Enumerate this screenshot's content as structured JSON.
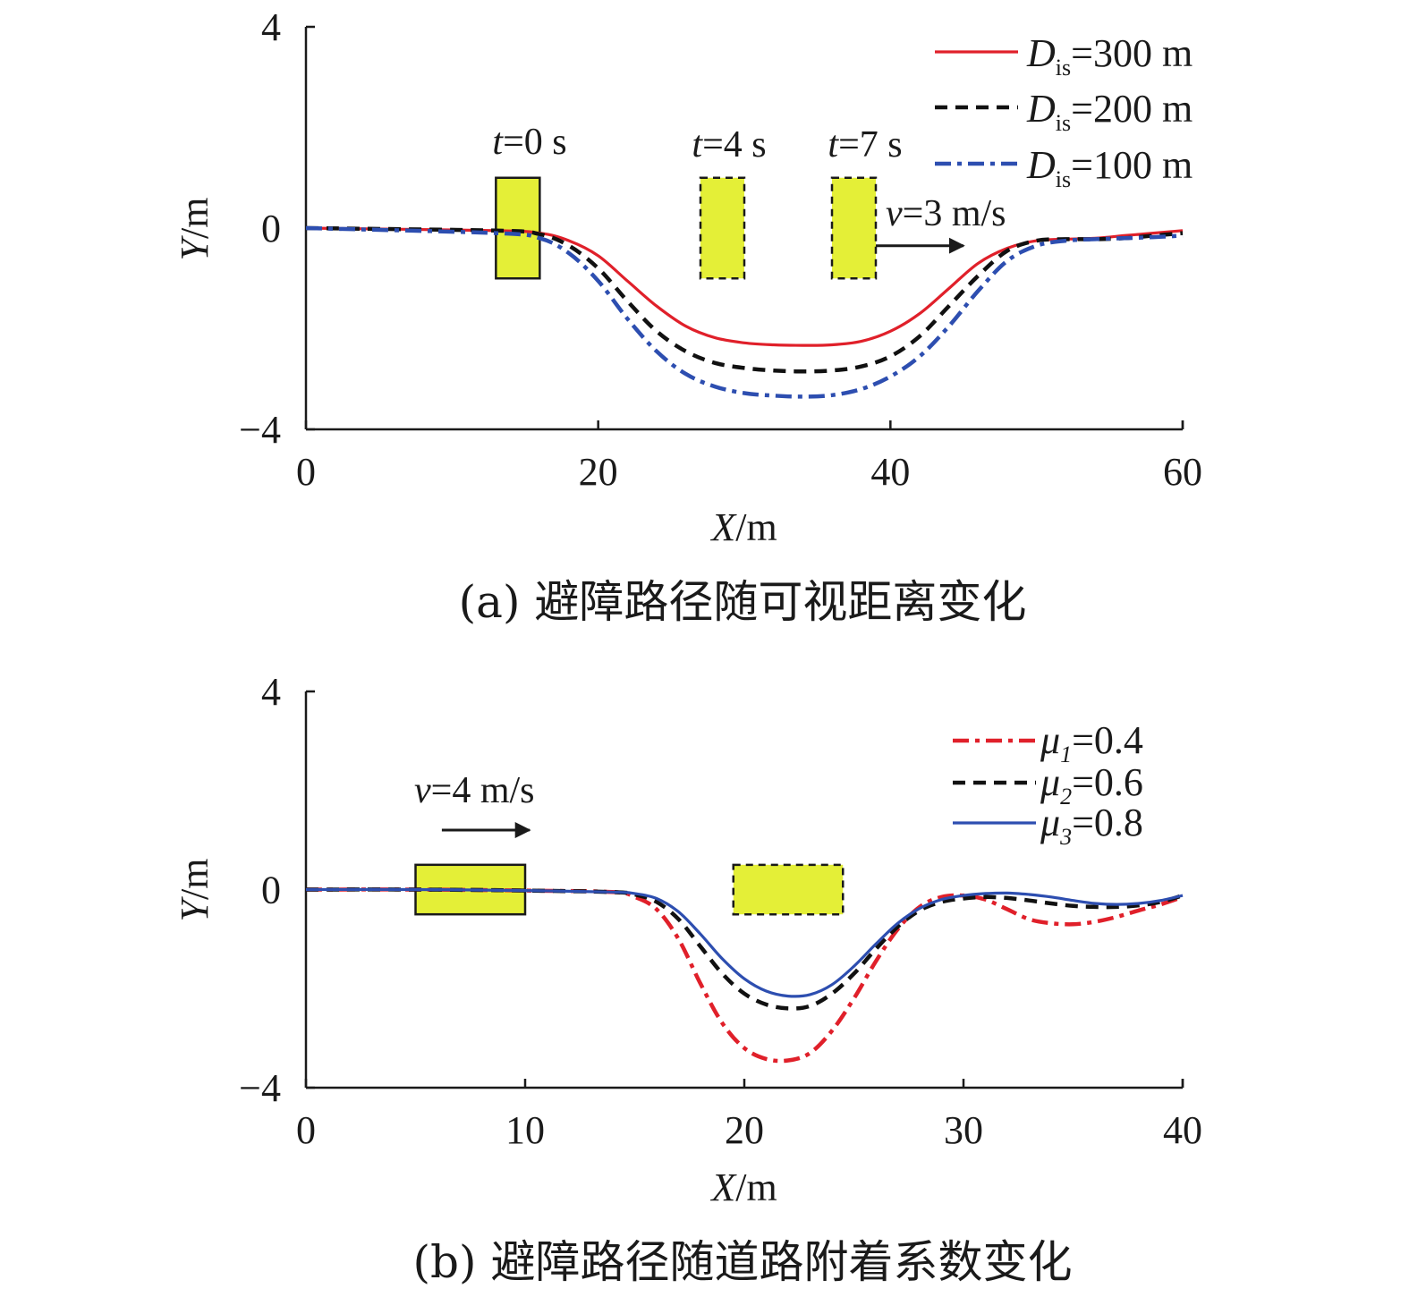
{
  "chart_data": [
    {
      "type": "line",
      "caption": "(a) 避障路径随可视距离变化",
      "xlabel": "X/m",
      "ylabel": "Y/m",
      "xlim": [
        0,
        60
      ],
      "ylim": [
        -4,
        4
      ],
      "xticks": [
        "0",
        "20",
        "40",
        "60"
      ],
      "yticks": [
        "4",
        "0",
        "−4"
      ],
      "series": [
        {
          "name": "D_is=300 m",
          "label_main": "D",
          "label_sub": "is",
          "label_rest": "=300 m",
          "color": "#e0202a",
          "style": "solid",
          "x": [
            0,
            13,
            16,
            18,
            20,
            22,
            24,
            26,
            28,
            30,
            32,
            34,
            36,
            38,
            40,
            42,
            44,
            46,
            48,
            50,
            52,
            54,
            56,
            58,
            60
          ],
          "y": [
            0,
            -0.05,
            -0.1,
            -0.25,
            -0.55,
            -1.05,
            -1.55,
            -1.95,
            -2.18,
            -2.28,
            -2.32,
            -2.33,
            -2.32,
            -2.25,
            -2.05,
            -1.7,
            -1.2,
            -0.7,
            -0.4,
            -0.25,
            -0.22,
            -0.2,
            -0.15,
            -0.1,
            -0.05
          ]
        },
        {
          "name": "D_is=200 m",
          "label_main": "D",
          "label_sub": "is",
          "label_rest": "=200 m",
          "color": "#111111",
          "style": "dash",
          "x": [
            0,
            13,
            16,
            18,
            20,
            22,
            24,
            26,
            28,
            30,
            32,
            34,
            36,
            38,
            40,
            42,
            44,
            46,
            48,
            50,
            52,
            54,
            56,
            58,
            60
          ],
          "y": [
            0,
            -0.05,
            -0.12,
            -0.35,
            -0.8,
            -1.45,
            -2.05,
            -2.45,
            -2.68,
            -2.78,
            -2.83,
            -2.85,
            -2.83,
            -2.75,
            -2.55,
            -2.15,
            -1.55,
            -0.95,
            -0.45,
            -0.25,
            -0.22,
            -0.22,
            -0.2,
            -0.15,
            -0.1
          ]
        },
        {
          "name": "D_is=100 m",
          "label_main": "D",
          "label_sub": "is",
          "label_rest": "=100 m",
          "color": "#2d4eb0",
          "style": "dashdot",
          "x": [
            0,
            13,
            16,
            18,
            20,
            22,
            24,
            26,
            28,
            30,
            32,
            34,
            36,
            38,
            40,
            42,
            44,
            46,
            48,
            50,
            52,
            54,
            56,
            58,
            60
          ],
          "y": [
            0,
            -0.1,
            -0.2,
            -0.5,
            -1.05,
            -1.8,
            -2.45,
            -2.9,
            -3.15,
            -3.28,
            -3.33,
            -3.35,
            -3.32,
            -3.2,
            -2.95,
            -2.55,
            -1.95,
            -1.25,
            -0.65,
            -0.35,
            -0.25,
            -0.22,
            -0.2,
            -0.18,
            -0.15
          ]
        }
      ],
      "obstacles": [
        {
          "x0": 13.0,
          "x1": 16.0,
          "y0": -1,
          "y1": 1,
          "style": "solid",
          "label_var": "t",
          "label_rest": "=0 s"
        },
        {
          "x0": 27.0,
          "x1": 30.0,
          "y0": -1,
          "y1": 1,
          "style": "dashed",
          "label_var": "t",
          "label_rest": "=4 s"
        },
        {
          "x0": 36.0,
          "x1": 39.0,
          "y0": -1,
          "y1": 1,
          "style": "dashed",
          "label_var": "t",
          "label_rest": "=7 s"
        }
      ],
      "arrow": {
        "x0": 39,
        "x1": 45,
        "y": -0.35,
        "label_var": "v",
        "label_rest": "=3 m/s"
      },
      "obstacle_fill": "#e4ef37"
    },
    {
      "type": "line",
      "caption": "(b) 避障路径随道路附着系数变化",
      "xlabel": "X/m",
      "ylabel": "Y/m",
      "xlim": [
        0,
        40
      ],
      "ylim": [
        -4,
        4
      ],
      "xticks": [
        "0",
        "10",
        "20",
        "30",
        "40"
      ],
      "yticks": [
        "4",
        "0",
        "−4"
      ],
      "series": [
        {
          "name": "μ1=0.4",
          "label_main": "μ",
          "label_sub": "1",
          "label_rest": "=0.4",
          "color": "#e0202a",
          "style": "dashdot",
          "x": [
            0,
            5,
            10,
            14,
            15,
            16,
            17,
            18,
            19,
            20,
            21,
            22,
            23,
            24,
            25,
            26,
            27,
            28,
            29,
            30,
            31,
            32,
            33,
            34,
            35,
            36,
            37,
            38,
            39,
            40
          ],
          "y": [
            0,
            0,
            -0.02,
            -0.05,
            -0.15,
            -0.4,
            -1.0,
            -1.9,
            -2.7,
            -3.2,
            -3.42,
            -3.45,
            -3.3,
            -2.85,
            -2.2,
            -1.45,
            -0.8,
            -0.35,
            -0.15,
            -0.12,
            -0.2,
            -0.4,
            -0.6,
            -0.68,
            -0.7,
            -0.65,
            -0.55,
            -0.42,
            -0.3,
            -0.15
          ]
        },
        {
          "name": "μ2=0.6",
          "label_main": "μ",
          "label_sub": "2",
          "label_rest": "=0.6",
          "color": "#111111",
          "style": "dash",
          "x": [
            0,
            5,
            10,
            14,
            15,
            16,
            17,
            18,
            19,
            20,
            21,
            22,
            23,
            24,
            25,
            26,
            27,
            28,
            29,
            30,
            31,
            32,
            33,
            34,
            35,
            36,
            37,
            38,
            39,
            40
          ],
          "y": [
            0,
            0,
            -0.02,
            -0.05,
            -0.1,
            -0.25,
            -0.6,
            -1.15,
            -1.7,
            -2.1,
            -2.32,
            -2.4,
            -2.35,
            -2.1,
            -1.7,
            -1.2,
            -0.75,
            -0.42,
            -0.25,
            -0.18,
            -0.15,
            -0.17,
            -0.22,
            -0.28,
            -0.33,
            -0.35,
            -0.35,
            -0.32,
            -0.25,
            -0.12
          ]
        },
        {
          "name": "μ3=0.8",
          "label_main": "μ",
          "label_sub": "3",
          "label_rest": "=0.8",
          "color": "#2d4eb0",
          "style": "solid",
          "x": [
            0,
            5,
            10,
            14,
            15,
            16,
            17,
            18,
            19,
            20,
            21,
            22,
            23,
            24,
            25,
            26,
            27,
            28,
            29,
            30,
            31,
            32,
            33,
            34,
            35,
            36,
            37,
            38,
            39,
            40
          ],
          "y": [
            0,
            0,
            -0.02,
            -0.05,
            -0.08,
            -0.18,
            -0.45,
            -0.9,
            -1.4,
            -1.8,
            -2.05,
            -2.15,
            -2.12,
            -1.92,
            -1.55,
            -1.1,
            -0.68,
            -0.38,
            -0.2,
            -0.12,
            -0.08,
            -0.07,
            -0.1,
            -0.15,
            -0.22,
            -0.28,
            -0.3,
            -0.28,
            -0.22,
            -0.12
          ]
        }
      ],
      "obstacles": [
        {
          "x0": 5.0,
          "x1": 10.0,
          "y0": -0.5,
          "y1": 0.5,
          "style": "solid",
          "label_var": "",
          "label_rest": ""
        },
        {
          "x0": 19.5,
          "x1": 24.5,
          "y0": -0.5,
          "y1": 0.5,
          "style": "dashed",
          "label_var": "",
          "label_rest": ""
        }
      ],
      "arrow": {
        "x0": 6.2,
        "x1": 10.2,
        "y": 1.2,
        "label_var": "v",
        "label_rest": "=4 m/s"
      },
      "obstacle_fill": "#e4ef37"
    }
  ]
}
